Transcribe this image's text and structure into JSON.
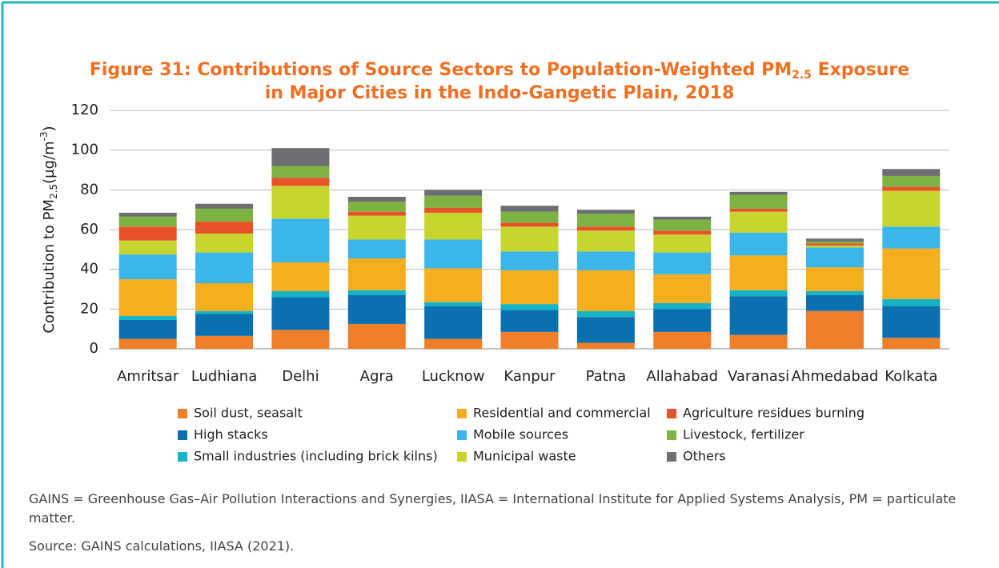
{
  "chart_data": {
    "type": "stacked_bar",
    "title": [
      "Figure 31: Contributions of Source Sectors to Population-Weighted PM",
      "2.5",
      " Exposure",
      "in Major Cities in the Indo-Gangetic Plain, 2018"
    ],
    "ylabel": [
      "Contribution to PM",
      "2.5",
      "(µg/m",
      "-3",
      ")"
    ],
    "categories": [
      "Amritsar",
      "Ludhiana",
      "Delhi",
      "Agra",
      "Lucknow",
      "Kanpur",
      "Patna",
      "Allahabad",
      "Varanasi",
      "Ahmedabad",
      "Kolkata"
    ],
    "series": [
      {
        "name": "Soil dust, seasalt",
        "color": "#f07f2a",
        "values": [
          5,
          6.5,
          9.5,
          12.5,
          5,
          8.5,
          3,
          8.5,
          7,
          19,
          5.5
        ]
      },
      {
        "name": "High stacks",
        "color": "#0a70b0",
        "values": [
          9.5,
          11,
          16.5,
          14.5,
          16.5,
          11,
          13,
          11.5,
          19.5,
          8,
          16
        ]
      },
      {
        "name": "Small industries (including brick kilns)",
        "color": "#16b3c6",
        "values": [
          2,
          1.5,
          3,
          2.5,
          2,
          3,
          3,
          3,
          3,
          2,
          3.5
        ]
      },
      {
        "name": "Residential and commercial",
        "color": "#f5ae1e",
        "values": [
          18.5,
          14,
          14.5,
          16,
          17,
          17,
          20.5,
          14.5,
          17.5,
          12,
          25.5
        ]
      },
      {
        "name": "Mobile sources",
        "color": "#3bb6e8",
        "values": [
          12.5,
          15.5,
          22,
          9.5,
          14.5,
          9.5,
          9.5,
          11,
          11.5,
          10,
          11
        ]
      },
      {
        "name": "Municipal waste",
        "color": "#c7d62e",
        "values": [
          7,
          9.5,
          16.5,
          12,
          13.5,
          12.5,
          10.5,
          9,
          10.5,
          1,
          18
        ]
      },
      {
        "name": "Agriculture residues burning",
        "color": "#e8512a",
        "values": [
          7,
          6,
          4,
          2,
          2.5,
          2,
          2,
          2,
          1.5,
          1,
          2
        ]
      },
      {
        "name": "Livestock, fertilizer",
        "color": "#7cb342",
        "values": [
          5,
          6.5,
          6,
          5,
          6,
          5.5,
          6.5,
          5.5,
          7,
          1,
          5.5
        ]
      },
      {
        "name": "Others",
        "color": "#6d6e71",
        "values": [
          2,
          2.5,
          9,
          2.5,
          3,
          3,
          2,
          1.5,
          1.5,
          1.5,
          3.5
        ]
      }
    ],
    "ylim": [
      0,
      120
    ],
    "yticks": [
      0,
      20,
      40,
      60,
      80,
      100,
      120
    ],
    "grid": true,
    "notes": "GAINS = Greenhouse Gas–Air Pollution Interactions and Synergies, IIASA = International Institute for Applied Systems Analysis, PM = particulate matter.",
    "source": "Source: GAINS calculations, IIASA (2021)."
  }
}
